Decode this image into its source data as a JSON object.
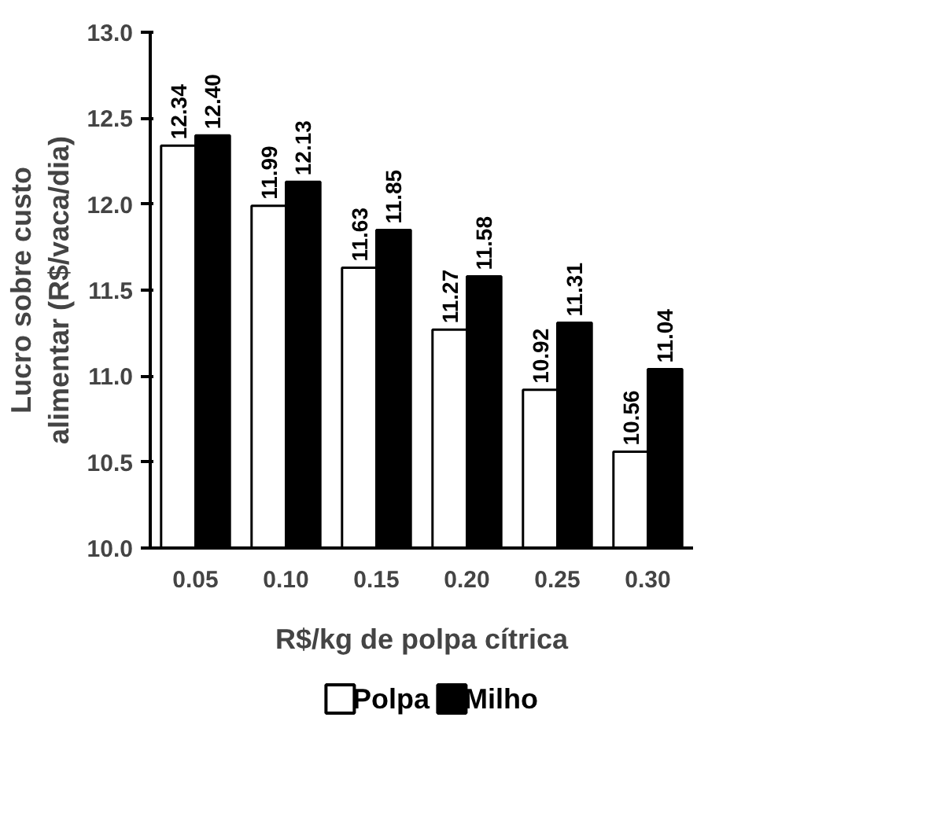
{
  "chart_data": {
    "type": "bar",
    "xlabel": "R$/kg de polpa cítrica",
    "ylabel": "Lucro sobre custo\nalimentar (R$/vaca/dia)",
    "categories": [
      "0.05",
      "0.10",
      "0.15",
      "0.20",
      "0.25",
      "0.30"
    ],
    "series": [
      {
        "name": "Polpa",
        "color": "#ffffff",
        "values": [
          12.34,
          11.99,
          11.63,
          11.27,
          10.92,
          10.56
        ],
        "value_labels": [
          "12.34",
          "11.99",
          "11.63",
          "11.27",
          "10.92",
          "10.56"
        ]
      },
      {
        "name": "Milho",
        "color": "#000000",
        "values": [
          12.4,
          12.13,
          11.85,
          11.58,
          11.31,
          11.04
        ],
        "value_labels": [
          "12.40",
          "12.13",
          "11.85",
          "11.58",
          "11.31",
          "11.04"
        ]
      }
    ],
    "ylim": [
      10.0,
      13.0
    ],
    "yticks": [
      {
        "value": 10,
        "label": "10.0"
      },
      {
        "value": 10.5,
        "label": "10.5"
      },
      {
        "value": 11,
        "label": "11.0"
      },
      {
        "value": 11.5,
        "label": "11.5"
      },
      {
        "value": 12,
        "label": "12.0"
      },
      {
        "value": 12.5,
        "label": "12.5"
      },
      {
        "value": 13,
        "label": "13.0"
      }
    ],
    "grid": false,
    "legend": "bottom"
  }
}
